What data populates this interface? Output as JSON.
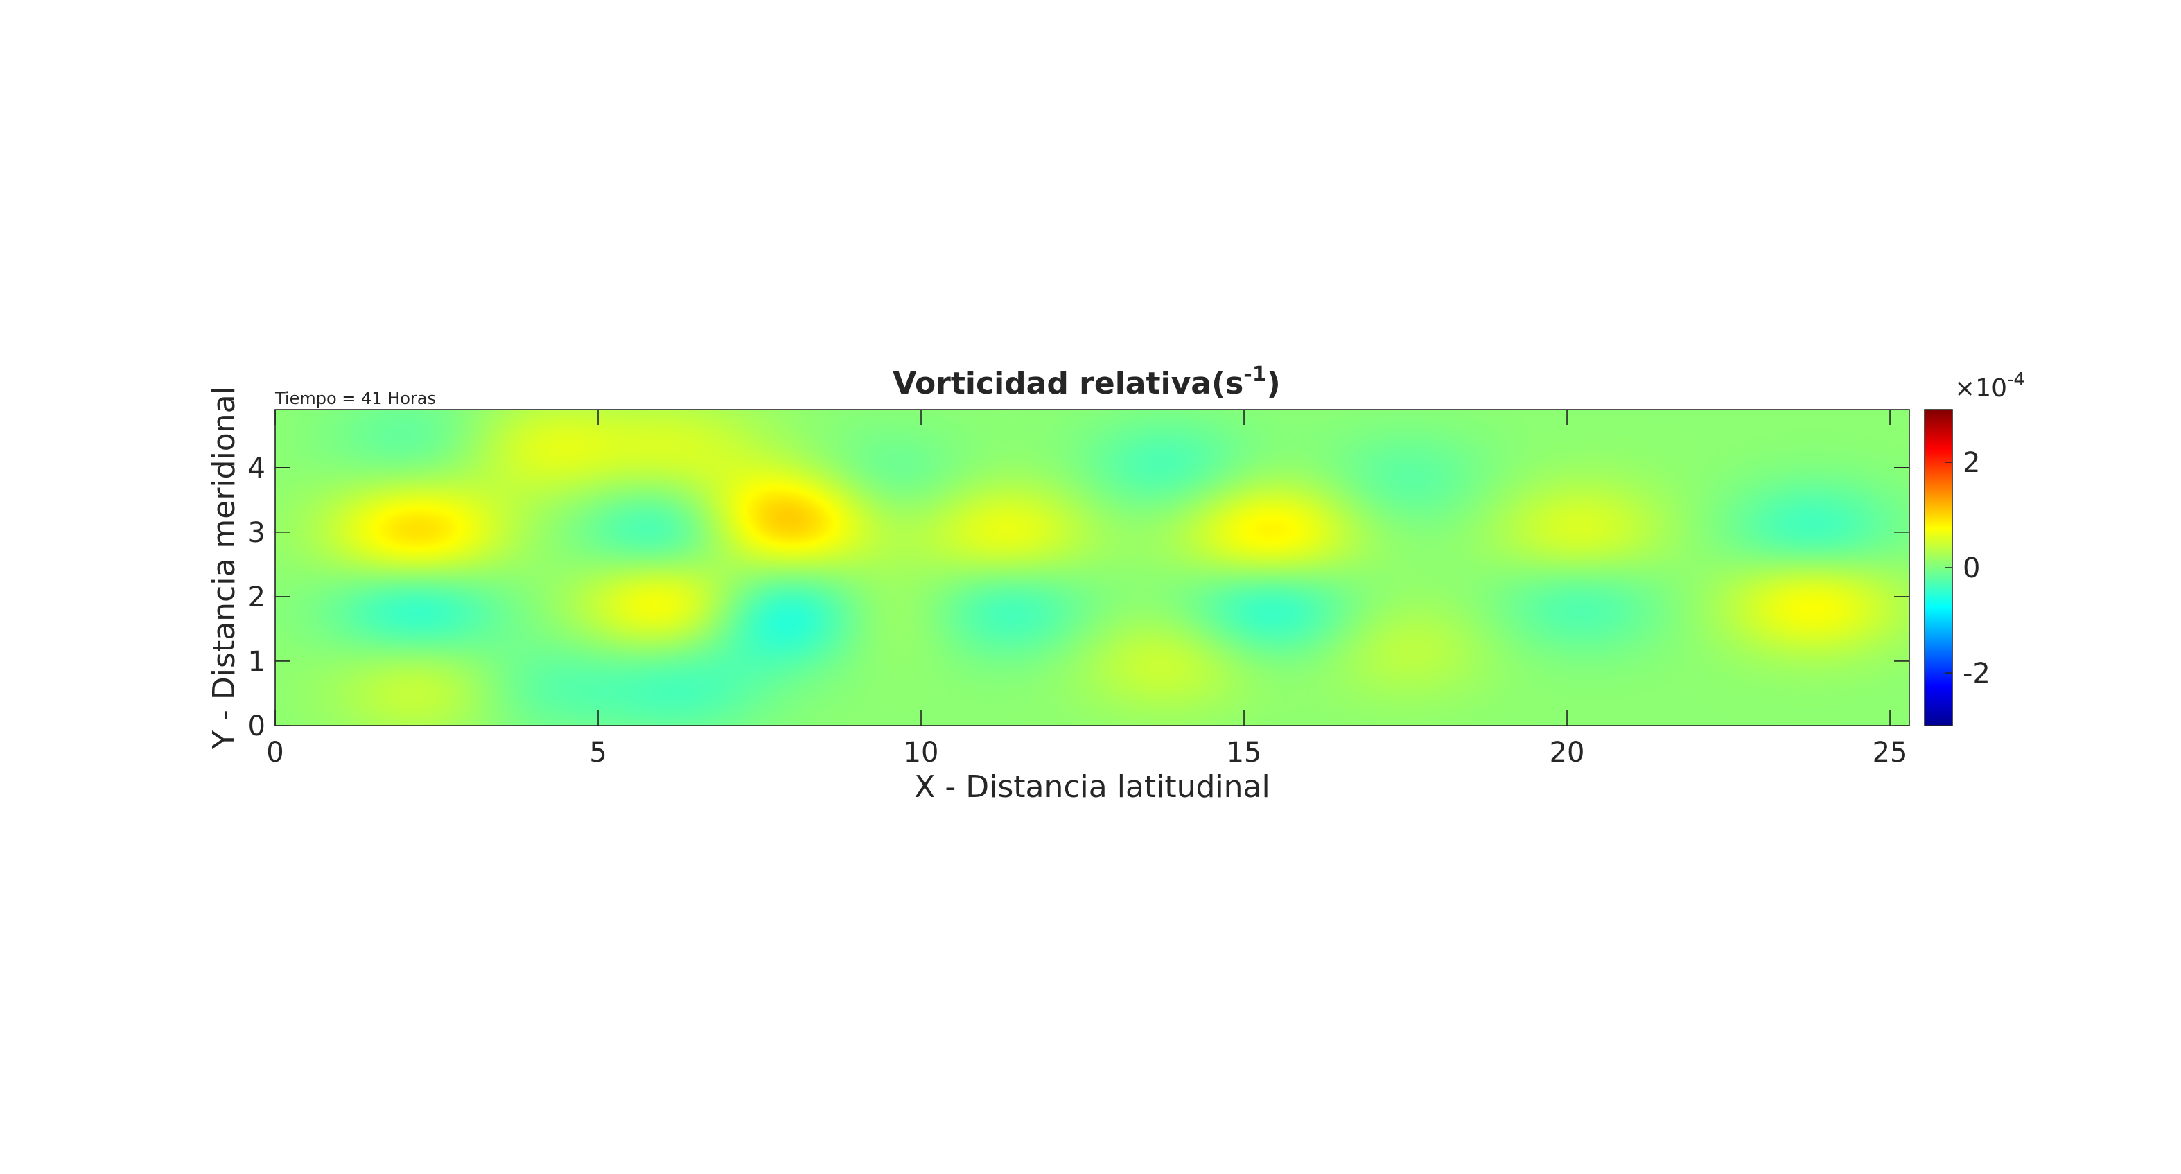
{
  "chart_data": {
    "type": "heatmap",
    "title": "Vorticidad relativa(s",
    "title_superscript": "-1",
    "title_close": ")",
    "annotation": "Tiempo = 41 Horas",
    "xlabel": "X - Distancia latitudinal",
    "ylabel": "Y - Distancia meridional",
    "xlim": [
      0,
      25.3
    ],
    "ylim": [
      0,
      4.9
    ],
    "xticks": [
      0,
      5,
      10,
      15,
      20,
      25
    ],
    "yticks": [
      0,
      1,
      2,
      3,
      4
    ],
    "colormap": "jet",
    "colorbar": {
      "clim": [
        -3,
        3
      ],
      "ticks": [
        -2,
        0,
        2
      ],
      "tick_labels": [
        "-2",
        "0",
        "2"
      ],
      "exponent_label": "×10",
      "exponent_superscript": "-4"
    },
    "field_units": "s^-1 (×10^-4)",
    "field_description_note": "Approximate smooth vorticity field read from the colormap; features listed as centers in data units with amplitude in ×10^-4 s^-1.",
    "features": [
      {
        "x": 2.2,
        "y": 3.0,
        "amp": 0.9
      },
      {
        "x": 2.2,
        "y": 1.8,
        "amp": -0.6
      },
      {
        "x": 2.3,
        "y": 0.6,
        "amp": 0.4
      },
      {
        "x": 2.2,
        "y": 4.4,
        "amp": -0.3
      },
      {
        "x": 4.2,
        "y": 4.3,
        "amp": 0.5
      },
      {
        "x": 4.2,
        "y": 0.6,
        "amp": -0.3
      },
      {
        "x": 6.1,
        "y": 3.0,
        "amp": -0.6
      },
      {
        "x": 6.1,
        "y": 1.9,
        "amp": 0.8
      },
      {
        "x": 6.3,
        "y": 4.3,
        "amp": 0.4
      },
      {
        "x": 6.3,
        "y": 0.6,
        "amp": -0.4
      },
      {
        "x": 7.9,
        "y": 3.2,
        "amp": 1.1
      },
      {
        "x": 7.9,
        "y": 1.7,
        "amp": -0.8
      },
      {
        "x": 9.4,
        "y": 3.8,
        "amp": -0.3
      },
      {
        "x": 9.4,
        "y": 1.7,
        "amp": 0.3
      },
      {
        "x": 11.3,
        "y": 3.0,
        "amp": 0.6
      },
      {
        "x": 11.3,
        "y": 1.8,
        "amp": -0.5
      },
      {
        "x": 13.8,
        "y": 4.0,
        "amp": -0.4
      },
      {
        "x": 13.8,
        "y": 1.0,
        "amp": 0.4
      },
      {
        "x": 15.4,
        "y": 3.0,
        "amp": 0.8
      },
      {
        "x": 15.4,
        "y": 1.8,
        "amp": -0.6
      },
      {
        "x": 17.5,
        "y": 3.8,
        "amp": -0.3
      },
      {
        "x": 17.5,
        "y": 1.2,
        "amp": 0.3
      },
      {
        "x": 20.2,
        "y": 3.0,
        "amp": 0.5
      },
      {
        "x": 20.2,
        "y": 1.9,
        "amp": -0.4
      },
      {
        "x": 23.8,
        "y": 3.0,
        "amp": -0.5
      },
      {
        "x": 23.8,
        "y": 1.9,
        "amp": 0.7
      }
    ]
  }
}
